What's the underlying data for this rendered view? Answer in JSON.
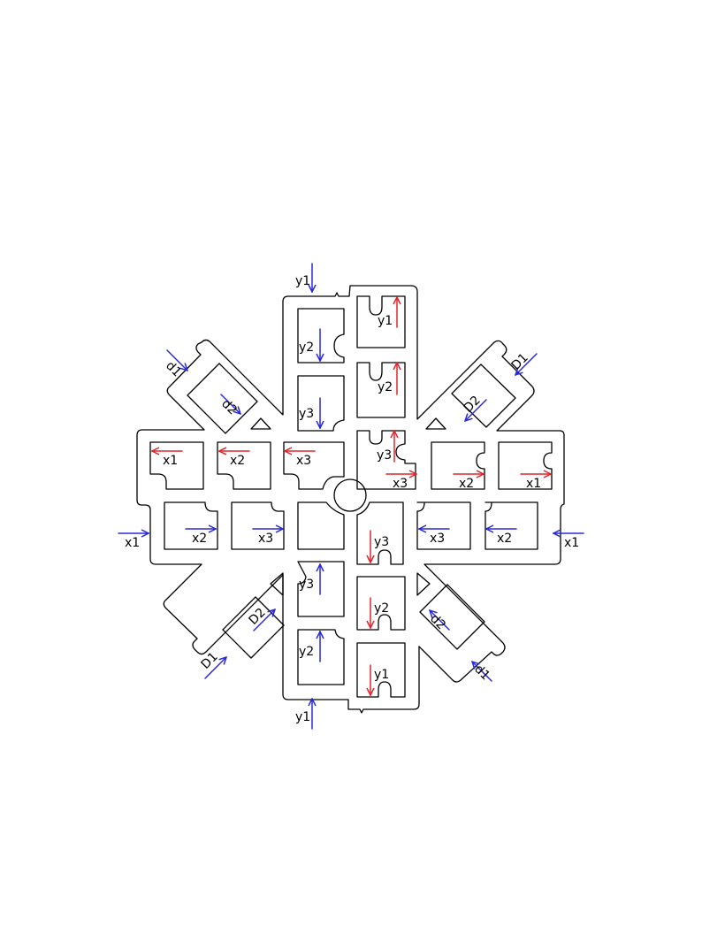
{
  "colors": {
    "outline": "#000000",
    "blue_arrow": "#2a2ad6",
    "red_arrow": "#e0262c",
    "background": "#ffffff"
  },
  "labels": {
    "y1": "y1",
    "y2": "y2",
    "y3": "y3",
    "x1": "x1",
    "x2": "x2",
    "x3": "x3",
    "d1": "d1",
    "d2": "d2",
    "D1": "D1",
    "D2": "D2"
  }
}
